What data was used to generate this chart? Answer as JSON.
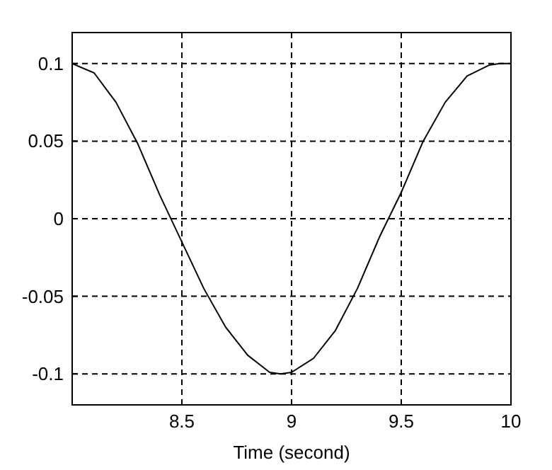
{
  "chart_data": {
    "type": "line",
    "xlabel": "Time (second)",
    "xlim": [
      8,
      10
    ],
    "ylim": [
      -0.12,
      0.12
    ],
    "xticks": [
      8.5,
      9,
      9.5,
      10
    ],
    "yticks": [
      -0.1,
      -0.05,
      0,
      0.05,
      0.1
    ],
    "grid": true,
    "line_style": "solid",
    "marker": "none",
    "series": [
      {
        "color": "#000000",
        "x": [
          8,
          8.1,
          8.2,
          8.3,
          8.4,
          8.5,
          8.6,
          8.7,
          8.8,
          8.9,
          8.95,
          9,
          9.1,
          9.2,
          9.3,
          9.4,
          9.5,
          9.6,
          9.7,
          9.8,
          9.9,
          9.95,
          10
        ],
        "values": [
          0.1,
          0.094,
          0.075,
          0.048,
          0.015,
          -0.015,
          -0.045,
          -0.07,
          -0.088,
          -0.099,
          -0.1,
          -0.099,
          -0.09,
          -0.072,
          -0.045,
          -0.012,
          0.017,
          0.05,
          0.075,
          0.092,
          0.099,
          0.1,
          0.1
        ]
      }
    ]
  }
}
